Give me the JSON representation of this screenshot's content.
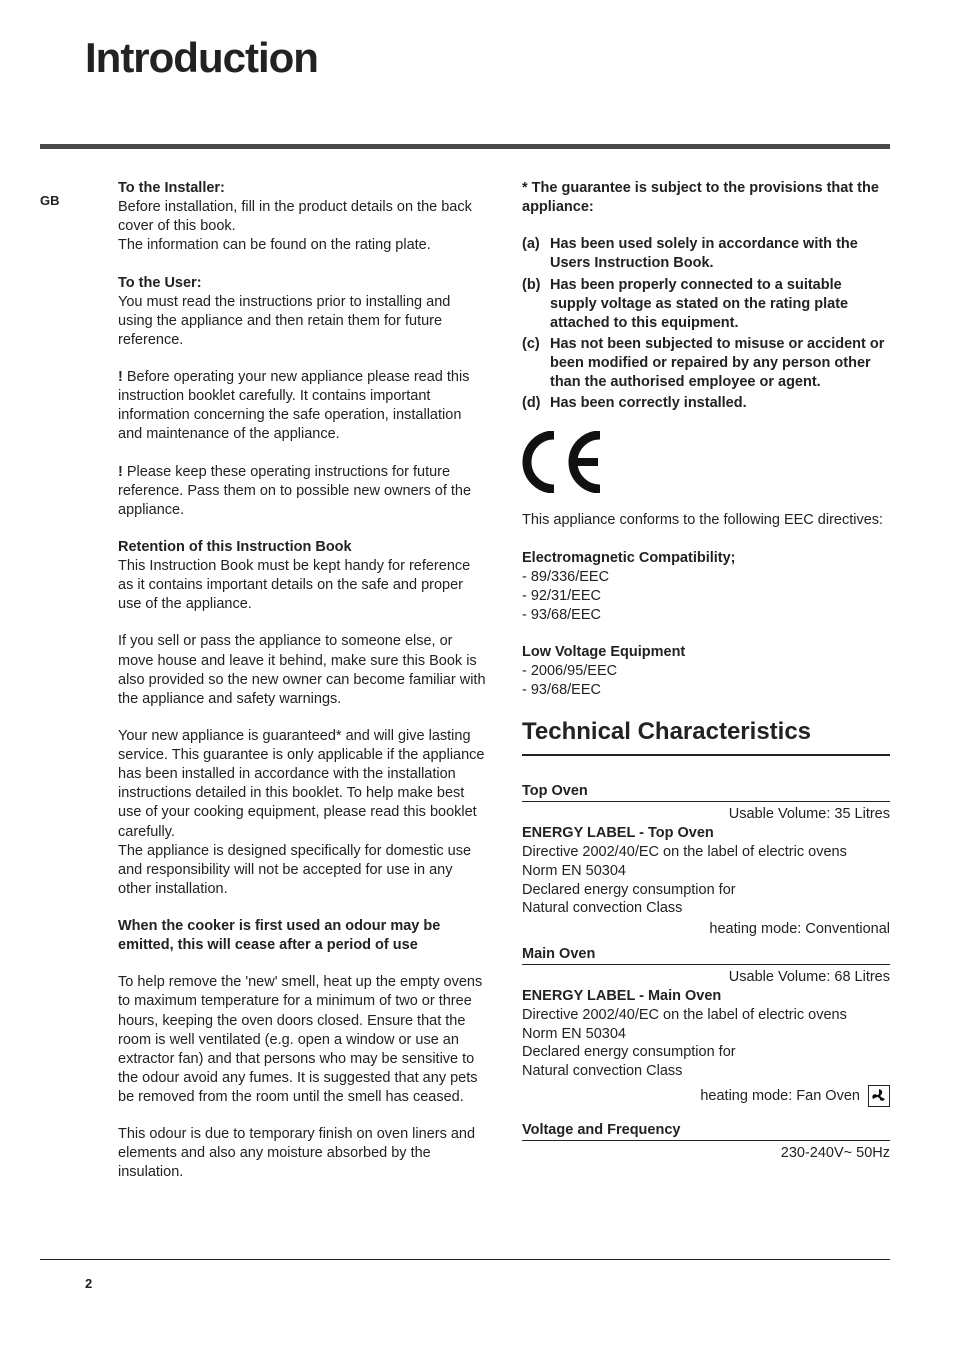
{
  "region_code": "GB",
  "page_title": "Introduction",
  "page_number": "2",
  "left": {
    "installer_heading": "To the Installer:",
    "installer_p1": "Before installation, fill in the product details on the back cover of this book.",
    "installer_p2": "The information can be found on the rating plate.",
    "user_heading": "To the User:",
    "user_p1": "You must read the instructions prior to installing and using the appliance and then retain them for future reference.",
    "bang1": "! ",
    "bang1_text": "Before operating your new appliance please read this instruction booklet carefully. It contains important information concerning the safe operation, installation and maintenance of the appliance.",
    "bang2": "! ",
    "bang2_text": "Please keep these operating instructions for future reference. Pass them on to possible new owners of the appliance.",
    "retention_heading": "Retention of this Instruction Book",
    "retention_p1": "This Instruction Book must be kept handy for reference as it contains important details on the safe and proper use of the appliance.",
    "retention_p2": "If you sell or pass the appliance to someone else, or move house and leave it behind, make sure this Book is also provided so the new owner can become familiar with the appliance and safety warnings.",
    "guarantee_p": "Your new appliance is guaranteed* and will give lasting service. This guarantee is only applicable if the appliance has been installed in accordance with the installation instructions detailed in this booklet. To help make best use of your cooking equipment, please read this booklet carefully.",
    "domestic_p": "The appliance is designed specifically for domestic use and responsibility will not be accepted for use in any other installation.",
    "odour_heading": "When the cooker is first used an odour may be emitted, this will cease after a period of use",
    "odour_p1": "To help remove the 'new' smell, heat up the empty ovens to maximum temperature for a minimum of two or three hours, keeping the oven doors closed. Ensure that the room is well ventilated (e.g. open a window or use an extractor fan) and that persons who may be sensitive to the odour avoid any fumes. It is suggested that any pets be removed from the room until the smell has ceased.",
    "odour_p2": "This odour is due to temporary finish on oven liners and elements and also any moisture absorbed by the insulation."
  },
  "right": {
    "guarantee_heading": "* The guarantee is subject to the provisions that the appliance:",
    "provisions": [
      {
        "k": "(a)",
        "t": "Has been used solely in accordance with the Users Instruction Book."
      },
      {
        "k": "(b)",
        "t": "Has been properly connected to a suitable supply voltage as stated on the rating plate attached to this equipment."
      },
      {
        "k": "(c)",
        "t": "Has not been subjected to misuse or accident or been modified or repaired by any person other than the authorised employee or agent."
      },
      {
        "k": "(d)",
        "t": "Has been correctly installed."
      }
    ],
    "conforms": "This appliance conforms to the following EEC directives:",
    "emc_heading": "Electromagnetic Compatibility;",
    "emc_items": [
      "- 89/336/EEC",
      "- 92/31/EEC",
      "- 93/68/EEC"
    ],
    "lv_heading": "Low Voltage Equipment",
    "lv_items": [
      "- 2006/95/EEC",
      "- 93/68/EEC"
    ],
    "tc_heading": "Technical Characteristics",
    "top_oven_label": "Top Oven",
    "top_oven_vol": "Usable Volume: 35 Litres",
    "el_top_heading": "ENERGY LABEL - Top Oven",
    "el_top_l1": "Directive 2002/40/EC on the label of electric ovens",
    "el_top_l2": "Norm EN 50304",
    "el_top_l3": "Declared energy consumption for",
    "el_top_l4": "Natural convection Class",
    "el_top_mode": "heating mode: Conventional",
    "main_oven_label": "Main Oven",
    "main_oven_vol": "Usable Volume: 68 Litres",
    "el_main_heading": "ENERGY LABEL - Main Oven",
    "el_main_l1": "Directive 2002/40/EC on the label of electric ovens",
    "el_main_l2": "Norm EN 50304",
    "el_main_l3": "Declared energy consumption for",
    "el_main_l4": "Natural convection Class",
    "el_main_mode": "heating mode: Fan Oven",
    "vf_label": "Voltage and Frequency",
    "vf_value": "230-240V~ 50Hz"
  },
  "style": {
    "title_fontsize": 42,
    "body_fontsize": 14.5,
    "rule_color": "#4a4a4a",
    "text_color": "#222222"
  }
}
